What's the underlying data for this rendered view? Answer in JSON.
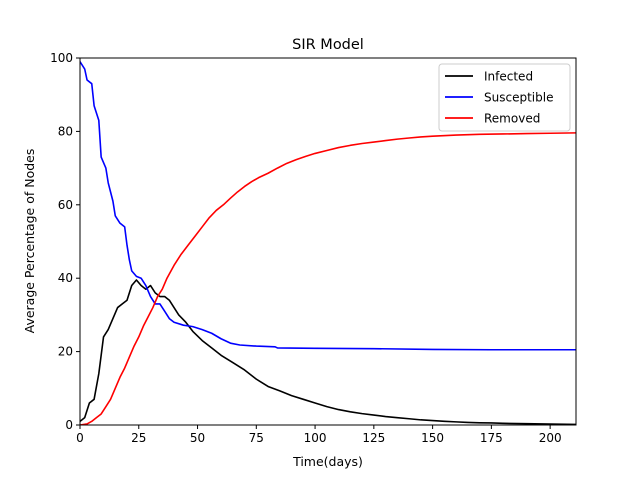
{
  "chart_data": {
    "type": "line",
    "title": "SIR Model",
    "xlabel": "Time(days)",
    "ylabel": "Average Percentage of Nodes",
    "xlim": [
      0,
      211
    ],
    "ylim": [
      0,
      100
    ],
    "xticks": [
      0,
      25,
      50,
      75,
      100,
      125,
      150,
      175,
      200
    ],
    "yticks": [
      0,
      20,
      40,
      60,
      80,
      100
    ],
    "grid": false,
    "legend_position": "top-right",
    "series": [
      {
        "name": "Infected",
        "color": "#000000",
        "points": [
          [
            0,
            1
          ],
          [
            2,
            2
          ],
          [
            4,
            6
          ],
          [
            6,
            7
          ],
          [
            8,
            14
          ],
          [
            10,
            24
          ],
          [
            12,
            26
          ],
          [
            14,
            29
          ],
          [
            16,
            32
          ],
          [
            18,
            33
          ],
          [
            20,
            34
          ],
          [
            22,
            38
          ],
          [
            24,
            39.5
          ],
          [
            26,
            38
          ],
          [
            28,
            37
          ],
          [
            30,
            38
          ],
          [
            32,
            36
          ],
          [
            34,
            35
          ],
          [
            36,
            35
          ],
          [
            38,
            34
          ],
          [
            40,
            32
          ],
          [
            42,
            30
          ],
          [
            45,
            28
          ],
          [
            48,
            25.5
          ],
          [
            52,
            23
          ],
          [
            56,
            21
          ],
          [
            60,
            19
          ],
          [
            65,
            17
          ],
          [
            70,
            15
          ],
          [
            75,
            12.5
          ],
          [
            80,
            10.5
          ],
          [
            85,
            9.3
          ],
          [
            90,
            8
          ],
          [
            95,
            7
          ],
          [
            100,
            6
          ],
          [
            105,
            5
          ],
          [
            110,
            4.2
          ],
          [
            115,
            3.6
          ],
          [
            120,
            3.1
          ],
          [
            125,
            2.7
          ],
          [
            130,
            2.3
          ],
          [
            135,
            2.0
          ],
          [
            140,
            1.7
          ],
          [
            145,
            1.4
          ],
          [
            150,
            1.2
          ],
          [
            155,
            1.0
          ],
          [
            160,
            0.85
          ],
          [
            165,
            0.7
          ],
          [
            170,
            0.6
          ],
          [
            175,
            0.55
          ],
          [
            180,
            0.45
          ],
          [
            190,
            0.35
          ],
          [
            200,
            0.25
          ],
          [
            211,
            0.15
          ]
        ]
      },
      {
        "name": "Susceptible",
        "color": "#0000ff",
        "points": [
          [
            0,
            99
          ],
          [
            2,
            97
          ],
          [
            3,
            94
          ],
          [
            5,
            93
          ],
          [
            6,
            87
          ],
          [
            8,
            83
          ],
          [
            9,
            73
          ],
          [
            11,
            70
          ],
          [
            12,
            66
          ],
          [
            14,
            61
          ],
          [
            15,
            57
          ],
          [
            17,
            55
          ],
          [
            19,
            54
          ],
          [
            20,
            49
          ],
          [
            21,
            45
          ],
          [
            22,
            42
          ],
          [
            24,
            40.5
          ],
          [
            26,
            40
          ],
          [
            28,
            38
          ],
          [
            30,
            35
          ],
          [
            32,
            33
          ],
          [
            34,
            33
          ],
          [
            36,
            31
          ],
          [
            38,
            29
          ],
          [
            40,
            28
          ],
          [
            44,
            27.2
          ],
          [
            48,
            26.8
          ],
          [
            52,
            26
          ],
          [
            56,
            25
          ],
          [
            60,
            23.5
          ],
          [
            64,
            22.3
          ],
          [
            68,
            21.8
          ],
          [
            75,
            21.5
          ],
          [
            83,
            21.3
          ],
          [
            84,
            21
          ],
          [
            100,
            20.9
          ],
          [
            125,
            20.8
          ],
          [
            150,
            20.6
          ],
          [
            175,
            20.5
          ],
          [
            211,
            20.5
          ]
        ]
      },
      {
        "name": "Removed",
        "color": "#ff0000",
        "points": [
          [
            0,
            0
          ],
          [
            3,
            0.3
          ],
          [
            5,
            1
          ],
          [
            7,
            2
          ],
          [
            9,
            3
          ],
          [
            11,
            5
          ],
          [
            13,
            7
          ],
          [
            15,
            10
          ],
          [
            17,
            13
          ],
          [
            19,
            15.5
          ],
          [
            21,
            18.5
          ],
          [
            23,
            21.5
          ],
          [
            25,
            24
          ],
          [
            27,
            27
          ],
          [
            29,
            29.5
          ],
          [
            31,
            32
          ],
          [
            33,
            35
          ],
          [
            35,
            37
          ],
          [
            37,
            40
          ],
          [
            40,
            43.5
          ],
          [
            43,
            46.5
          ],
          [
            46,
            49
          ],
          [
            49,
            51.5
          ],
          [
            52,
            54
          ],
          [
            55,
            56.5
          ],
          [
            58,
            58.5
          ],
          [
            61,
            60
          ],
          [
            64,
            61.8
          ],
          [
            67,
            63.5
          ],
          [
            70,
            65
          ],
          [
            73,
            66.3
          ],
          [
            76,
            67.4
          ],
          [
            80,
            68.6
          ],
          [
            84,
            70
          ],
          [
            88,
            71.3
          ],
          [
            92,
            72.3
          ],
          [
            96,
            73.2
          ],
          [
            100,
            74
          ],
          [
            105,
            74.8
          ],
          [
            110,
            75.6
          ],
          [
            115,
            76.2
          ],
          [
            120,
            76.7
          ],
          [
            125,
            77.1
          ],
          [
            130,
            77.5
          ],
          [
            135,
            77.9
          ],
          [
            140,
            78.2
          ],
          [
            145,
            78.5
          ],
          [
            150,
            78.7
          ],
          [
            160,
            79
          ],
          [
            170,
            79.2
          ],
          [
            180,
            79.3
          ],
          [
            190,
            79.4
          ],
          [
            200,
            79.5
          ],
          [
            211,
            79.6
          ]
        ]
      }
    ]
  }
}
